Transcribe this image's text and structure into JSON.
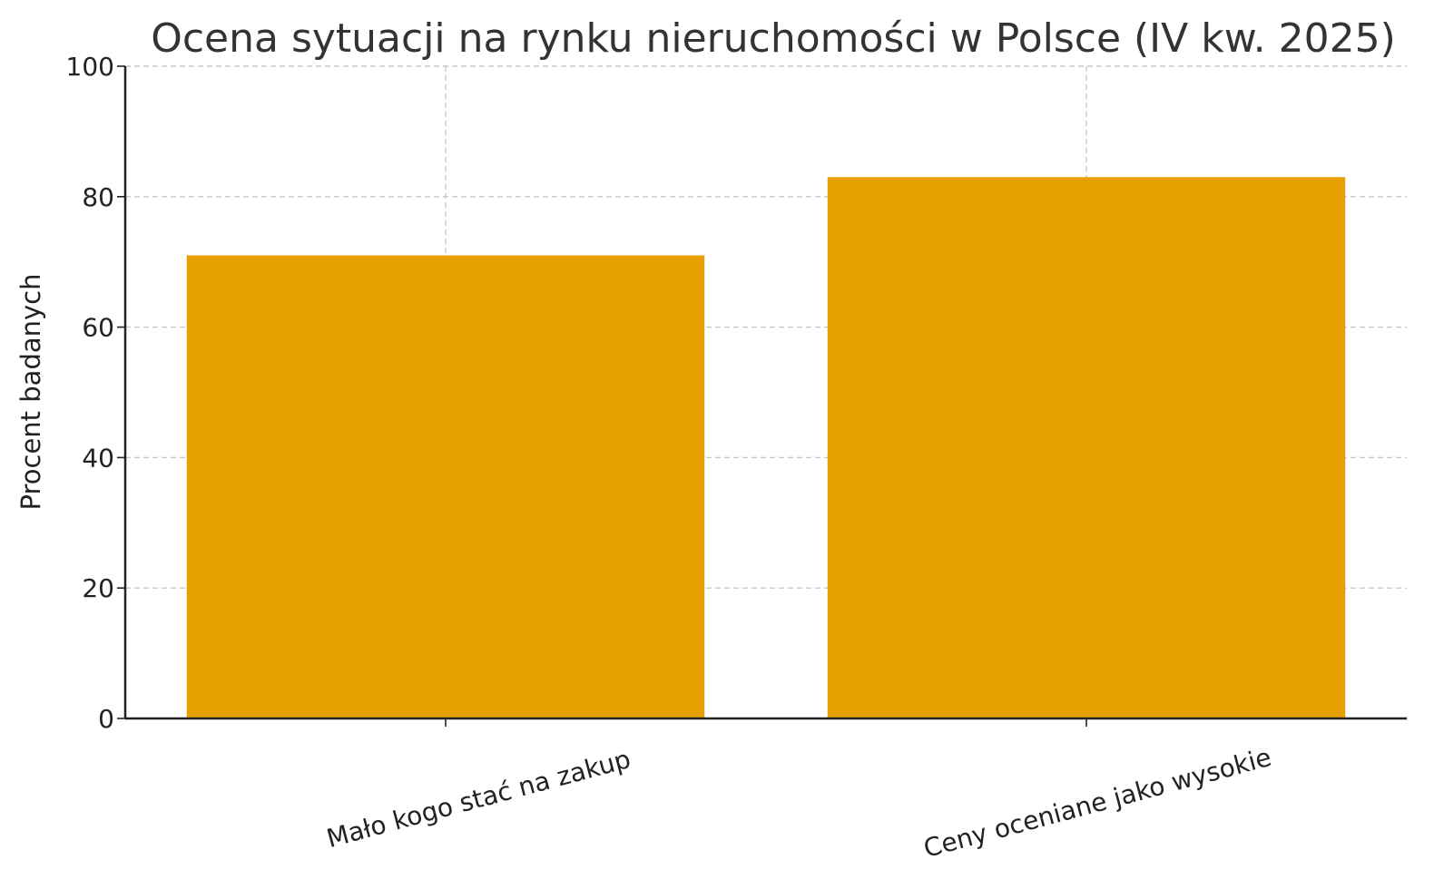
{
  "chart_data": {
    "type": "bar",
    "title": "Ocena sytuacji na rynku nieruchomości w Polsce (IV kw. 2025)",
    "xlabel": "",
    "ylabel": "Procent badanych",
    "categories": [
      "Mało kogo stać na zakup",
      "Ceny oceniane jako wysokie"
    ],
    "values": [
      71,
      83
    ],
    "ylim": [
      0,
      100
    ],
    "yticks": [
      0,
      20,
      40,
      60,
      80,
      100
    ],
    "bar_color": "#E69F00",
    "grid": true,
    "legend": "none"
  }
}
